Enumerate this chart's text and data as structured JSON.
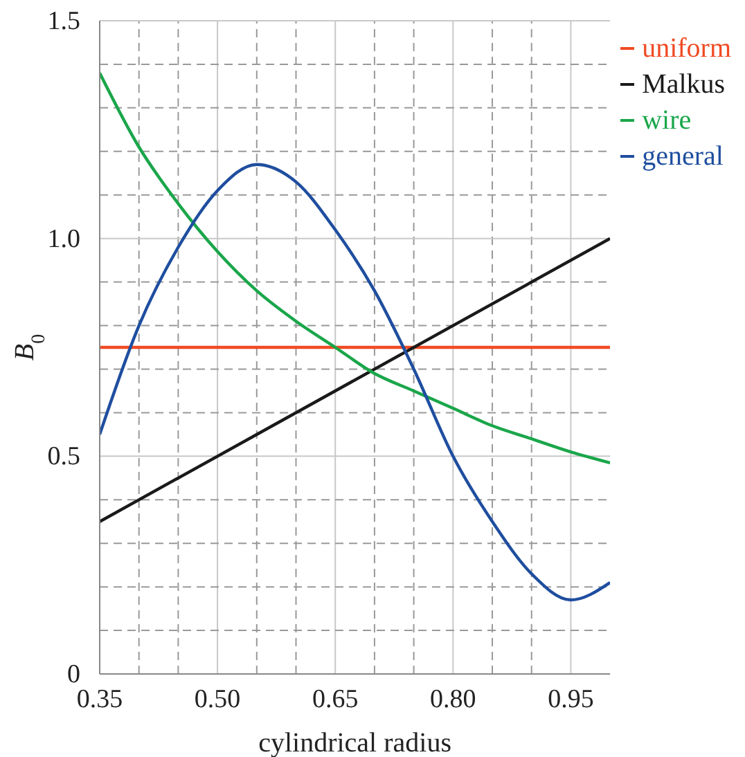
{
  "chart_data": {
    "type": "line",
    "xlabel": "cylindrical radius",
    "ylabel": "B$_{0}$",
    "xlim": [
      0.35,
      1.0
    ],
    "ylim": [
      0,
      1.5
    ],
    "xticks": [
      0.35,
      {
        "value": 0.4,
        "label": null
      },
      {
        "value": 0.45,
        "label": null
      },
      {
        "value": 0.5,
        "label": "0.50"
      },
      {
        "value": 0.55,
        "label": null
      },
      {
        "value": 0.6,
        "label": null
      },
      0.65,
      {
        "value": 0.7,
        "label": null
      },
      {
        "value": 0.75,
        "label": null
      },
      {
        "value": 0.8,
        "label": "0.80"
      },
      {
        "value": 0.85,
        "label": null
      },
      {
        "value": 0.9,
        "label": null
      },
      0.95
    ],
    "yticks": [
      0,
      {
        "value": 0.1,
        "label": null
      },
      {
        "value": 0.2,
        "label": null
      },
      {
        "value": 0.3,
        "label": null
      },
      {
        "value": 0.4,
        "label": null
      },
      0.5,
      {
        "value": 0.6,
        "label": null
      },
      {
        "value": 0.7,
        "label": null
      },
      {
        "value": 0.8,
        "label": null
      },
      {
        "value": 0.9,
        "label": null
      },
      {
        "value": 1.0,
        "label": "1.0"
      },
      {
        "value": 1.1,
        "label": null
      },
      {
        "value": 1.2,
        "label": null
      },
      {
        "value": 1.3,
        "label": null
      },
      {
        "value": 1.4,
        "label": null
      },
      1.5
    ],
    "grid": true,
    "legend": "top right",
    "marker": "none",
    "line_style": "solid",
    "series": [
      {
        "name": "uniform",
        "color": "#f04a23",
        "x": [
          0.35,
          1.0
        ],
        "values": [
          0.75,
          0.75
        ]
      },
      {
        "name": "Malkus",
        "color": "#1a1a1a",
        "x": [
          0.35,
          1.0
        ],
        "values": [
          0.35,
          1.0
        ]
      },
      {
        "name": "wire",
        "color": "#1aa64a",
        "x": [
          0.35,
          0.4,
          0.45,
          0.5,
          0.55,
          0.6,
          0.65,
          0.7,
          0.75,
          0.8,
          0.85,
          0.9,
          0.95,
          1.0
        ],
        "values": [
          1.38,
          1.21,
          1.08,
          0.97,
          0.88,
          0.81,
          0.75,
          0.69,
          0.65,
          0.61,
          0.57,
          0.54,
          0.51,
          0.485
        ]
      },
      {
        "name": "general",
        "color": "#1f4e9f",
        "x": [
          0.35,
          0.4,
          0.45,
          0.5,
          0.55,
          0.6,
          0.65,
          0.7,
          0.75,
          0.8,
          0.85,
          0.9,
          0.95,
          1.0
        ],
        "values": [
          0.55,
          0.8,
          0.98,
          1.11,
          1.17,
          1.13,
          1.02,
          0.88,
          0.7,
          0.5,
          0.35,
          0.23,
          0.17,
          0.21
        ]
      }
    ]
  }
}
